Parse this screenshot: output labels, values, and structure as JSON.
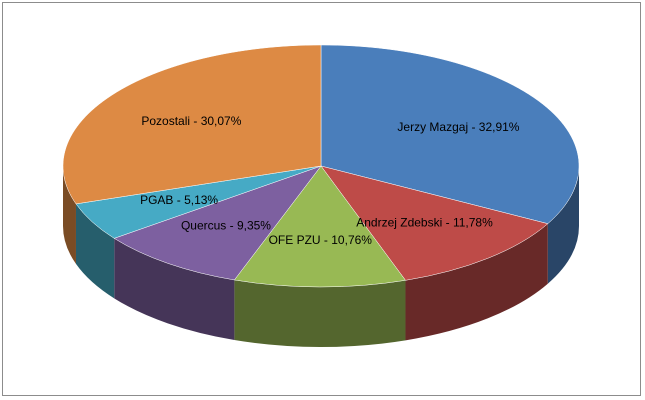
{
  "chart_data": {
    "type": "pie",
    "values": [
      32.91,
      11.78,
      10.76,
      9.35,
      5.13,
      30.07
    ],
    "value_labels": [
      "Jerzy Mazgaj - 32,91%",
      "Andrzej Zdebski - 11,78%",
      "OFE PZU - 10,76%",
      "Quercus - 9,35%",
      "PGAB - 5,13%",
      "Pozostali - 30,07%"
    ],
    "colors": [
      "#4a7ebb",
      "#be4b48",
      "#98b954",
      "#7d60a0",
      "#46aac5",
      "#dd8a44"
    ],
    "start_angle": 0,
    "direction": "clockwise",
    "style": "3d"
  }
}
